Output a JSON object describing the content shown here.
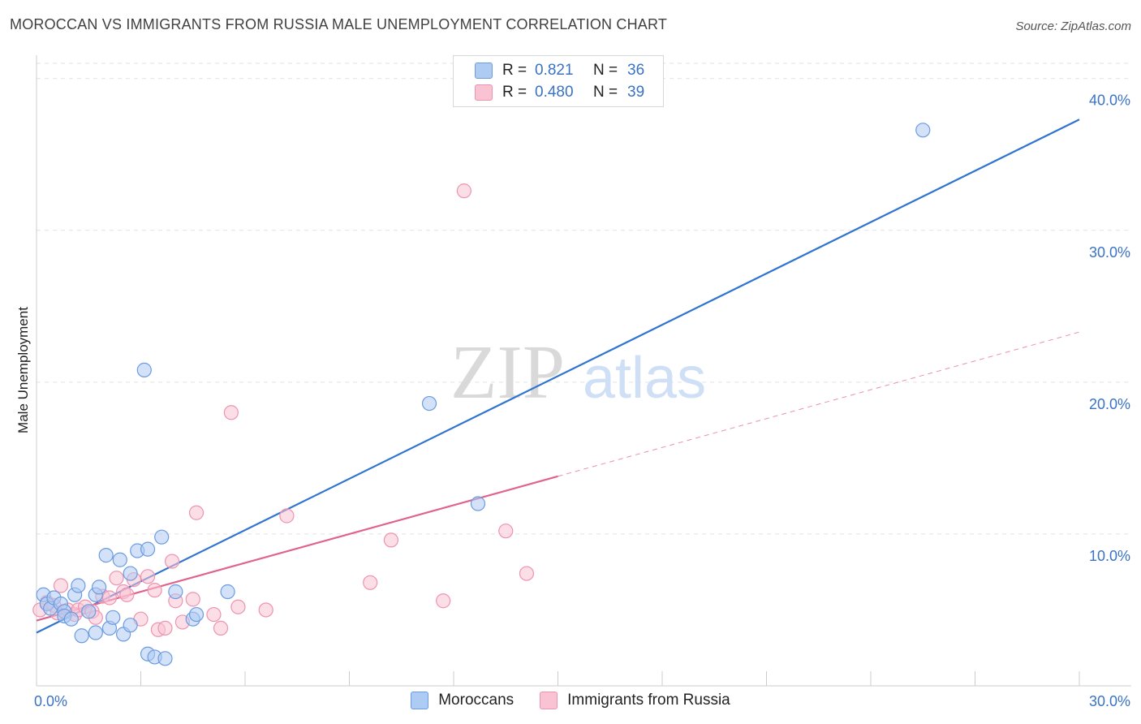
{
  "title": "MOROCCAN VS IMMIGRANTS FROM RUSSIA MALE UNEMPLOYMENT CORRELATION CHART",
  "source": "Source: ZipAtlas.com",
  "watermark": {
    "zip": "ZIP",
    "atlas": "atlas"
  },
  "legend": {
    "r_label": "R =",
    "n_label": "N =",
    "rows": [
      {
        "r": "0.821",
        "n": "36",
        "color": "#aecbf3"
      },
      {
        "r": "0.480",
        "n": "39",
        "color": "#f9c3d4"
      }
    ]
  },
  "bottom_legend": [
    "Moroccans",
    "Immigrants from Russia"
  ],
  "colors": {
    "blue_fill": "#aecbf3",
    "blue_stroke": "#6b9be0",
    "blue_line": "#2f74d0",
    "pink_fill": "#f9c3d4",
    "pink_stroke": "#ee93b0",
    "pink_line": "#e0628e",
    "tick_text": "#3a72c4",
    "grid": "#e2e2e2"
  },
  "chart_data": {
    "type": "scatter",
    "title": "MOROCCAN VS IMMIGRANTS FROM RUSSIA MALE UNEMPLOYMENT CORRELATION CHART",
    "xlabel": "",
    "ylabel": "Male Unemployment",
    "xlim": [
      0,
      30
    ],
    "ylim": [
      0,
      41
    ],
    "x_tick_labels": [
      "0.0%",
      "30.0%"
    ],
    "y_ticks": [
      10,
      20,
      30,
      40
    ],
    "y_tick_labels": [
      "10.0%",
      "20.0%",
      "30.0%",
      "40.0%"
    ],
    "grid": true,
    "series": [
      {
        "name": "Moroccans",
        "R": 0.821,
        "N": 36,
        "points": [
          [
            0.2,
            6.0
          ],
          [
            0.3,
            5.4
          ],
          [
            0.4,
            5.1
          ],
          [
            0.5,
            5.8
          ],
          [
            0.7,
            5.4
          ],
          [
            0.8,
            4.9
          ],
          [
            0.8,
            4.6
          ],
          [
            1.0,
            4.4
          ],
          [
            1.1,
            6.0
          ],
          [
            1.2,
            6.6
          ],
          [
            1.3,
            3.3
          ],
          [
            1.5,
            4.9
          ],
          [
            1.7,
            6.0
          ],
          [
            1.7,
            3.5
          ],
          [
            1.8,
            6.5
          ],
          [
            2.0,
            8.6
          ],
          [
            2.1,
            3.8
          ],
          [
            2.2,
            4.5
          ],
          [
            2.4,
            8.3
          ],
          [
            2.5,
            3.4
          ],
          [
            2.7,
            4.0
          ],
          [
            2.7,
            7.4
          ],
          [
            2.9,
            8.9
          ],
          [
            3.1,
            20.8
          ],
          [
            3.2,
            9.0
          ],
          [
            3.2,
            2.1
          ],
          [
            3.4,
            1.9
          ],
          [
            3.6,
            9.8
          ],
          [
            3.7,
            1.8
          ],
          [
            4.0,
            6.2
          ],
          [
            4.5,
            4.4
          ],
          [
            4.6,
            4.7
          ],
          [
            5.5,
            6.2
          ],
          [
            11.3,
            18.6
          ],
          [
            12.7,
            12.0
          ],
          [
            25.5,
            36.6
          ]
        ],
        "trendline": {
          "x": [
            0,
            30
          ],
          "y": [
            3.5,
            37.3
          ]
        }
      },
      {
        "name": "Immigrants from Russia",
        "R": 0.48,
        "N": 39,
        "points": [
          [
            0.1,
            5.0
          ],
          [
            0.3,
            5.5
          ],
          [
            0.5,
            5.3
          ],
          [
            0.6,
            4.8
          ],
          [
            0.7,
            6.6
          ],
          [
            0.9,
            5.0
          ],
          [
            1.1,
            4.7
          ],
          [
            1.2,
            5.0
          ],
          [
            1.4,
            5.2
          ],
          [
            1.6,
            4.9
          ],
          [
            1.7,
            4.5
          ],
          [
            1.9,
            5.9
          ],
          [
            2.1,
            5.8
          ],
          [
            2.3,
            7.1
          ],
          [
            2.5,
            6.2
          ],
          [
            2.6,
            6.0
          ],
          [
            2.8,
            7.0
          ],
          [
            3.0,
            4.4
          ],
          [
            3.2,
            7.2
          ],
          [
            3.4,
            6.3
          ],
          [
            3.5,
            3.7
          ],
          [
            3.7,
            3.8
          ],
          [
            3.9,
            8.2
          ],
          [
            4.0,
            5.6
          ],
          [
            4.2,
            4.2
          ],
          [
            4.5,
            5.7
          ],
          [
            4.6,
            11.4
          ],
          [
            5.1,
            4.7
          ],
          [
            5.3,
            3.8
          ],
          [
            5.6,
            18.0
          ],
          [
            5.8,
            5.2
          ],
          [
            6.6,
            5.0
          ],
          [
            7.2,
            11.2
          ],
          [
            9.6,
            6.8
          ],
          [
            10.2,
            9.6
          ],
          [
            11.7,
            5.6
          ],
          [
            12.3,
            32.6
          ],
          [
            13.5,
            10.2
          ],
          [
            14.1,
            7.4
          ]
        ],
        "trendline": {
          "x": [
            0,
            15
          ],
          "y": [
            4.3,
            13.8
          ]
        },
        "trendline_extension": {
          "x": [
            15,
            30
          ],
          "y": [
            13.8,
            23.3
          ]
        }
      }
    ]
  }
}
